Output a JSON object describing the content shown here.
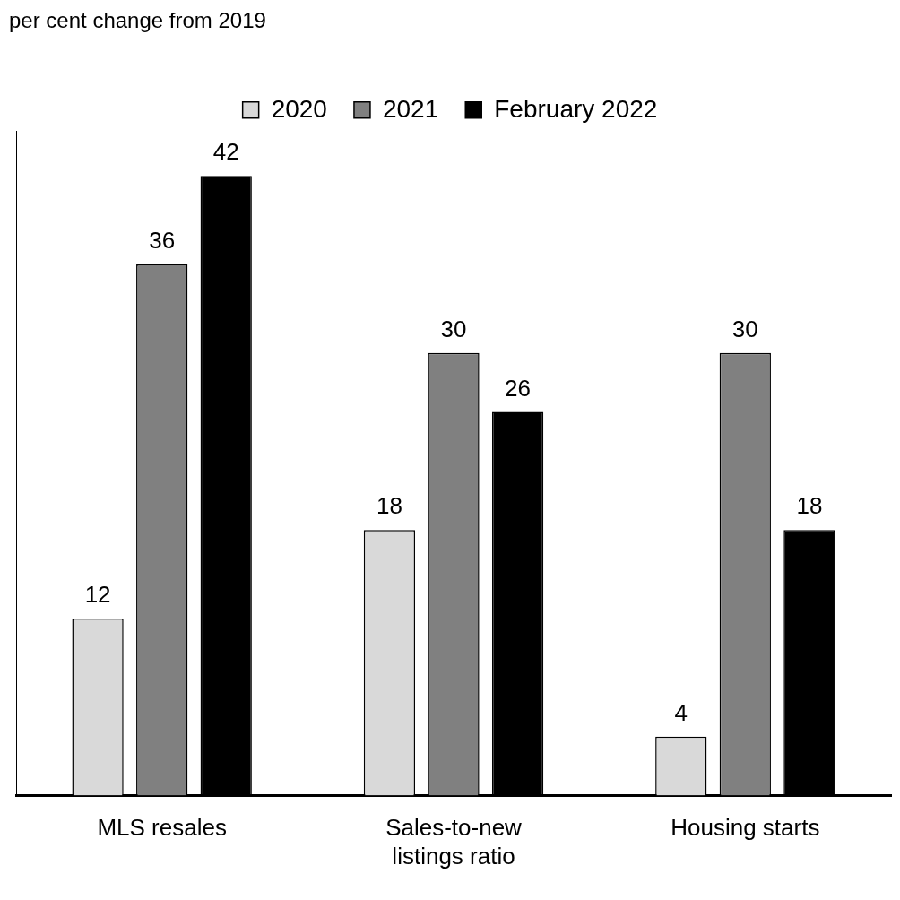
{
  "chart_data": {
    "type": "bar",
    "ylabel": "per cent change from 2019",
    "categories": [
      "MLS resales",
      "Sales-to-new listings ratio",
      "Housing starts"
    ],
    "series": [
      {
        "name": "2020",
        "color": "#d9d9d9",
        "values": [
          12,
          18,
          4
        ]
      },
      {
        "name": "2021",
        "color": "#808080",
        "values": [
          36,
          30,
          30
        ]
      },
      {
        "name": "February 2022",
        "color": "#000000",
        "values": [
          42,
          26,
          18
        ]
      }
    ],
    "ylim": [
      0,
      45
    ],
    "grid": false,
    "legend": "top",
    "data_labels": true,
    "tick_labels": "x"
  }
}
